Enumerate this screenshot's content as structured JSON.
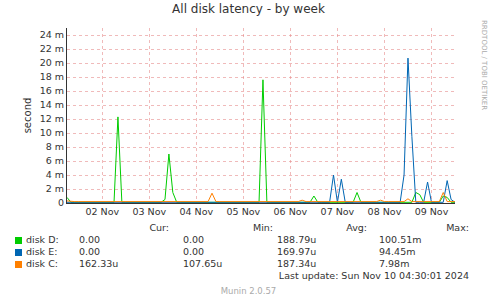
{
  "chart_data": {
    "type": "line",
    "title": "All disk latency - by week",
    "y_label": "second",
    "grid": true,
    "categories": [
      null,
      null,
      null,
      null,
      null,
      null,
      null,
      null,
      null,
      "02 Nov",
      null,
      null,
      null,
      null,
      null,
      null,
      null,
      null,
      null,
      null,
      null,
      "03 Nov",
      null,
      null,
      null,
      null,
      null,
      null,
      null,
      null,
      null,
      null,
      null,
      "04 Nov",
      null,
      null,
      null,
      null,
      null,
      null,
      null,
      null,
      null,
      null,
      null,
      "05 Nov",
      null,
      null,
      null,
      null,
      null,
      null,
      null,
      null,
      null,
      null,
      null,
      "06 Nov",
      null,
      null,
      null,
      null,
      null,
      null,
      null,
      null,
      null,
      null,
      null,
      "07 Nov",
      null,
      null,
      null,
      null,
      null,
      null,
      null,
      null,
      null,
      null,
      null,
      "08 Nov",
      null,
      null,
      null,
      null,
      null,
      null,
      null,
      null,
      null,
      null,
      null,
      "09 Nov",
      null,
      null,
      null,
      null,
      null,
      null
    ],
    "ylim": [
      0,
      0.025
    ],
    "yticks": [
      0,
      {
        "value": 0.002,
        "label": "2 m"
      },
      {
        "value": 0.004,
        "label": "4 m"
      },
      {
        "value": 0.006,
        "label": "6 m"
      },
      {
        "value": 0.008,
        "label": "8 m"
      },
      {
        "value": 0.01,
        "label": "10 m"
      },
      {
        "value": 0.012,
        "label": "12 m"
      },
      {
        "value": 0.014,
        "label": "14 m"
      },
      {
        "value": 0.016,
        "label": "16 m"
      },
      {
        "value": 0.018,
        "label": "18 m"
      },
      {
        "value": 0.02,
        "label": "20 m"
      },
      {
        "value": 0.022,
        "label": "22 m"
      },
      {
        "value": 0.024,
        "label": "24 m"
      }
    ],
    "series": [
      {
        "name": "disk D:",
        "color": "#00cc00",
        "values": [
          0.0008,
          0.0001,
          0.0001,
          0.0001,
          0.0001,
          0.0001,
          0.0001,
          0.0001,
          0.0001,
          0.0001,
          0.0001,
          0.0001,
          0.0001,
          0.0123,
          0.0001,
          0.0001,
          0.0001,
          0.0001,
          0.0001,
          0.0001,
          0.0001,
          0.0001,
          0.0001,
          0.0001,
          0.0001,
          0.0005,
          0.007,
          0.0015,
          0.0001,
          0.0001,
          0.0001,
          0.0001,
          0.0001,
          0.0001,
          0.0001,
          0.0001,
          0.0001,
          0.0001,
          0.0001,
          0.0001,
          0.0001,
          0.0001,
          0.0001,
          0.0001,
          0.0001,
          0.0001,
          0.0001,
          0.0001,
          0.0001,
          0.0001,
          0.0176,
          0.0001,
          0.0001,
          0.0001,
          0.0001,
          0.0001,
          0.0001,
          0.0001,
          0.0001,
          0.0001,
          0.0001,
          0.0001,
          0.0001,
          0.001,
          0.0001,
          0.0001,
          0.0001,
          0.0001,
          0.0001,
          0.0001,
          0.0001,
          0.0001,
          0.0001,
          0.0001,
          0.0015,
          0.0001,
          0.0001,
          0.0001,
          0.0001,
          0.0001,
          0.0001,
          0.0001,
          0.0001,
          0.0001,
          0.0001,
          0.0001,
          0.0001,
          0.0001,
          0.0001,
          0.0015,
          0.0012,
          0.0001,
          0.0001,
          0.0001,
          0.0001,
          0.0001,
          0.001,
          0.0008,
          0.0001,
          0.0001
        ]
      },
      {
        "name": "disk E:",
        "color": "#0066b3",
        "values": [
          0.0001,
          0.0001,
          0.0001,
          0.0001,
          0.0001,
          0.0001,
          0.0001,
          0.0001,
          0.0001,
          0.0001,
          0.0001,
          0.0001,
          0.0001,
          0.0001,
          0.0001,
          0.0001,
          0.0001,
          0.0001,
          0.0001,
          0.0001,
          0.0001,
          0.0001,
          0.0001,
          0.0001,
          0.0001,
          0.0001,
          0.0001,
          0.0001,
          0.0001,
          0.0001,
          0.0001,
          0.0001,
          0.0001,
          0.0001,
          0.0001,
          0.0001,
          0.0001,
          0.0001,
          0.0001,
          0.0001,
          0.0001,
          0.0001,
          0.0001,
          0.0001,
          0.0001,
          0.0001,
          0.0001,
          0.0001,
          0.0001,
          0.0001,
          0.0001,
          0.0001,
          0.0001,
          0.0001,
          0.0001,
          0.0001,
          0.0001,
          0.0001,
          0.0001,
          0.0001,
          0.0001,
          0.0001,
          0.0001,
          0.0001,
          0.0001,
          0.0001,
          0.0001,
          0.0001,
          0.004,
          0.0001,
          0.0034,
          0.0001,
          0.0001,
          0.0001,
          0.0001,
          0.0001,
          0.0001,
          0.0001,
          0.0001,
          0.0001,
          0.0001,
          0.0001,
          0.0001,
          0.0001,
          0.0001,
          0.0001,
          0.004,
          0.0207,
          0.0095,
          0.0001,
          0.0001,
          0.0001,
          0.003,
          0.0001,
          0.0001,
          0.0001,
          0.0001,
          0.0032,
          0.0005,
          0.0001
        ]
      },
      {
        "name": "disk C:",
        "color": "#ff8000",
        "values": [
          0.0003,
          0.0002,
          0.0002,
          0.0002,
          0.0002,
          0.0002,
          0.0002,
          0.0002,
          0.0002,
          0.0002,
          0.0002,
          0.0002,
          0.0002,
          0.0002,
          0.0002,
          0.0002,
          0.0002,
          0.0002,
          0.0002,
          0.0002,
          0.0002,
          0.0002,
          0.0002,
          0.0002,
          0.0002,
          0.0002,
          0.0002,
          0.0002,
          0.0002,
          0.0002,
          0.0002,
          0.0002,
          0.0002,
          0.0002,
          0.0002,
          0.0002,
          0.0002,
          0.0014,
          0.0002,
          0.0002,
          0.0002,
          0.0002,
          0.0002,
          0.0002,
          0.0002,
          0.0002,
          0.0002,
          0.0002,
          0.0002,
          0.0002,
          0.0002,
          0.0002,
          0.0002,
          0.0002,
          0.0002,
          0.0002,
          0.0002,
          0.0002,
          0.0002,
          0.0002,
          0.0004,
          0.0002,
          0.0002,
          0.0002,
          0.0002,
          0.0002,
          0.0002,
          0.0002,
          0.0002,
          0.0002,
          0.0002,
          0.0002,
          0.0002,
          0.0002,
          0.0002,
          0.0002,
          0.0002,
          0.0002,
          0.0002,
          0.0002,
          0.0004,
          0.0002,
          0.0002,
          0.0002,
          0.0002,
          0.0002,
          0.0002,
          0.0006,
          0.0002,
          0.0002,
          0.0002,
          0.0002,
          0.0002,
          0.0002,
          0.0002,
          0.0002,
          0.0015,
          0.0002,
          0.0002,
          0.0002
        ]
      }
    ],
    "legend_table": {
      "columns": [
        "Cur:",
        "Min:",
        "Avg:",
        "Max:"
      ],
      "rows": [
        [
          "0.00",
          "0.00",
          "188.79u",
          "100.51m"
        ],
        [
          "0.00",
          "0.00",
          "169.97u",
          "94.45m"
        ],
        [
          "162.33u",
          "107.65u",
          "187.34u",
          "7.98m"
        ]
      ]
    },
    "last_update": "Last update: Sun Nov 10 04:30:01 2024",
    "footer": "Munin 2.0.57",
    "side_text": "RRDTOOL / TOBI OETIKER"
  }
}
